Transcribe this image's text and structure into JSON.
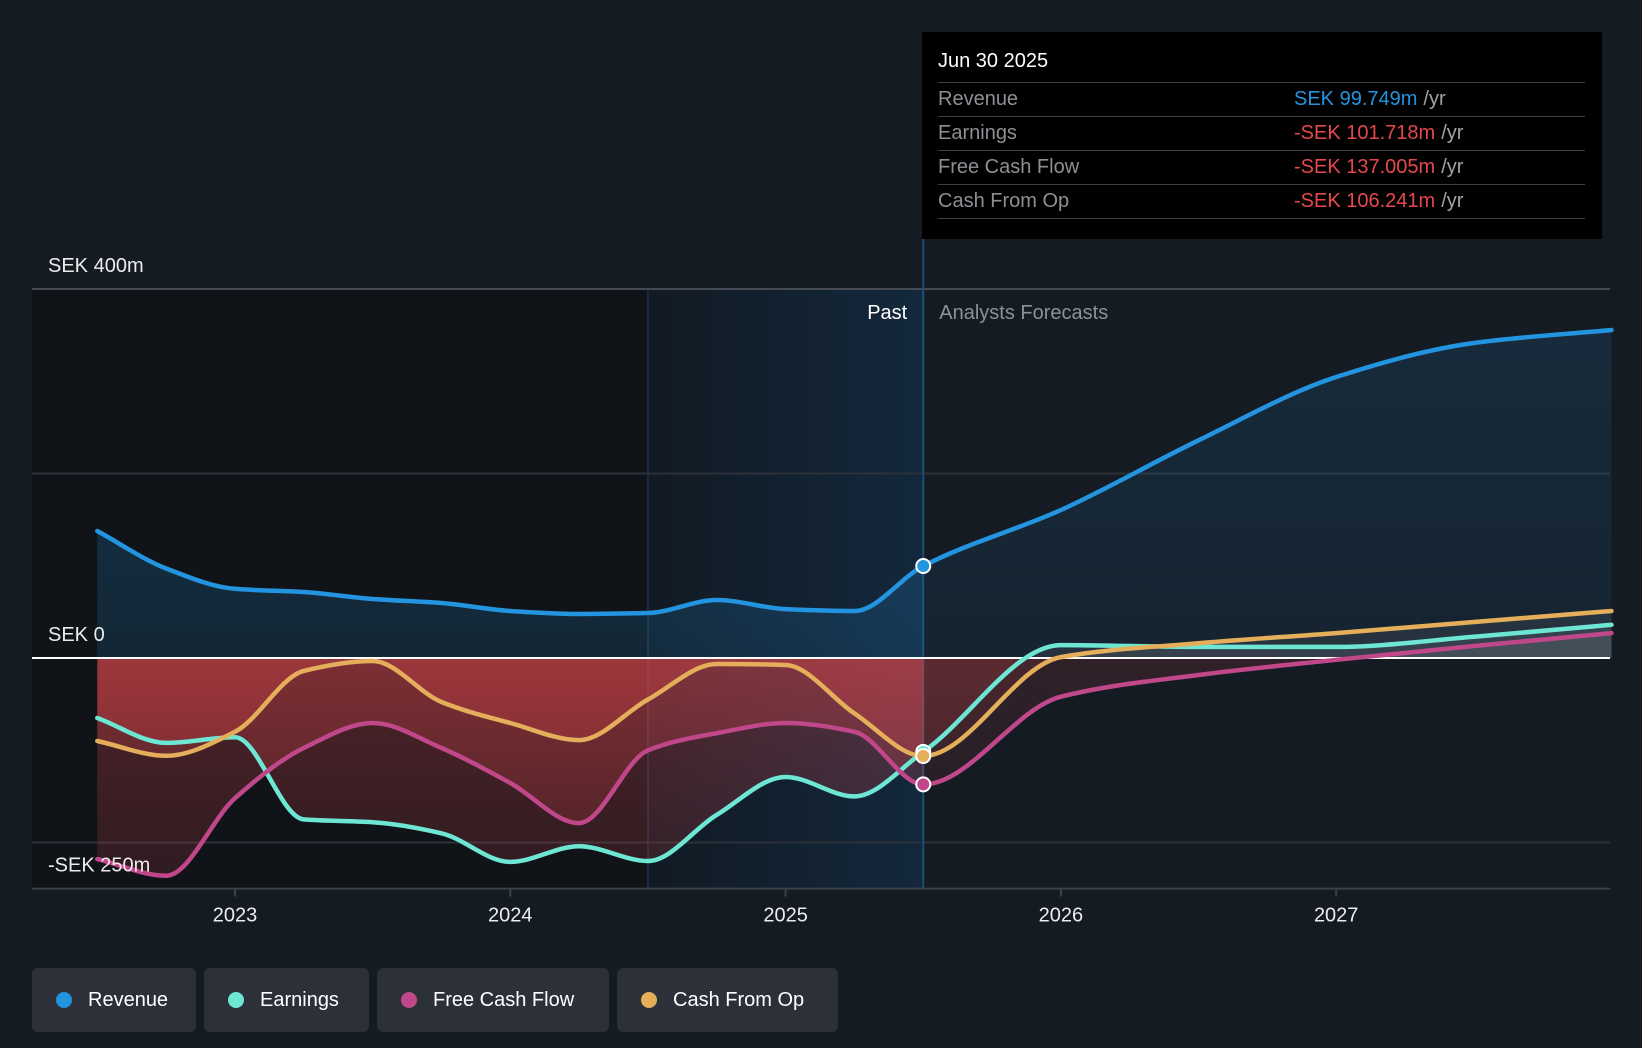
{
  "chart_data": {
    "type": "line",
    "title": "",
    "xlabel": "",
    "ylabel": "",
    "units": "SEK m",
    "xlim": [
      2022.26,
      2028.0
    ],
    "ylim": [
      -250,
      400
    ],
    "grid": true,
    "gridlines": [
      400,
      200,
      0,
      -200
    ],
    "x_ticks": [
      {
        "label": "2023",
        "value": 2023
      },
      {
        "label": "2024",
        "value": 2024
      },
      {
        "label": "2025",
        "value": 2025
      },
      {
        "label": "2026",
        "value": 2026
      },
      {
        "label": "2027",
        "value": 2027
      }
    ],
    "y_ticks": [
      {
        "label": "SEK 400m",
        "value": 400
      },
      {
        "label": "SEK 0",
        "value": 0
      },
      {
        "label": "-SEK 250m",
        "value": -250
      }
    ],
    "highlight_band": [
      2024.5,
      2025.5
    ],
    "now": 2025.5,
    "region_labels": {
      "past": "Past",
      "forecast": "Analysts Forecasts"
    },
    "legend_position": "bottom-left",
    "series": [
      {
        "name": "Revenue",
        "key": "revenue",
        "color": "#2394df",
        "points": [
          [
            2022.5,
            137.7
          ],
          [
            2022.75,
            97.0
          ],
          [
            2023.0,
            75.0
          ],
          [
            2023.25,
            71.5
          ],
          [
            2023.5,
            64.0
          ],
          [
            2023.75,
            59.6
          ],
          [
            2024.0,
            51.0
          ],
          [
            2024.25,
            47.7
          ],
          [
            2024.5,
            48.8
          ],
          [
            2024.75,
            62.9
          ],
          [
            2025.0,
            53.0
          ],
          [
            2025.25,
            51.0
          ],
          [
            2025.5,
            99.749
          ],
          [
            2026.0,
            160.4
          ],
          [
            2026.5,
            236.0
          ],
          [
            2027.0,
            304.6
          ],
          [
            2027.5,
            341.5
          ],
          [
            2028.0,
            355.6
          ]
        ]
      },
      {
        "name": "Earnings",
        "key": "earnings",
        "color": "#6ee6d4",
        "points": [
          [
            2022.5,
            -65.0
          ],
          [
            2022.75,
            -92.0
          ],
          [
            2023.0,
            -86.0
          ],
          [
            2023.25,
            -175.0
          ],
          [
            2023.5,
            -178.0
          ],
          [
            2023.75,
            -190.0
          ],
          [
            2024.0,
            -221.0
          ],
          [
            2024.25,
            -204.0
          ],
          [
            2024.5,
            -220.0
          ],
          [
            2024.75,
            -170.0
          ],
          [
            2025.0,
            -129.0
          ],
          [
            2025.25,
            -150.0
          ],
          [
            2025.5,
            -101.718
          ],
          [
            2026.0,
            14.0
          ],
          [
            2026.5,
            12.0
          ],
          [
            2027.0,
            12.0
          ],
          [
            2027.5,
            23.0
          ],
          [
            2028.0,
            36.0
          ]
        ]
      },
      {
        "name": "Free Cash Flow",
        "key": "fcf",
        "color": "#c0478a",
        "points": [
          [
            2022.5,
            -218.0
          ],
          [
            2022.75,
            -236.0
          ],
          [
            2023.0,
            -152.0
          ],
          [
            2023.25,
            -97.6
          ],
          [
            2023.5,
            -70.5
          ],
          [
            2023.75,
            -97.6
          ],
          [
            2024.0,
            -135.5
          ],
          [
            2024.25,
            -179.0
          ],
          [
            2024.5,
            -100.0
          ],
          [
            2024.75,
            -81.5
          ],
          [
            2025.0,
            -70.5
          ],
          [
            2025.25,
            -80.0
          ],
          [
            2025.5,
            -137.005
          ],
          [
            2026.0,
            -42.0
          ],
          [
            2026.5,
            -18.4
          ],
          [
            2027.0,
            -2.0
          ],
          [
            2027.5,
            13.0
          ],
          [
            2028.0,
            27.0
          ]
        ]
      },
      {
        "name": "Cash From Op",
        "key": "cfo",
        "color": "#e5ae5b",
        "points": [
          [
            2022.5,
            -90.0
          ],
          [
            2022.75,
            -106.0
          ],
          [
            2023.0,
            -80.0
          ],
          [
            2023.25,
            -14.0
          ],
          [
            2023.5,
            -3.3
          ],
          [
            2023.75,
            -47.7
          ],
          [
            2024.0,
            -70.5
          ],
          [
            2024.25,
            -89.0
          ],
          [
            2024.5,
            -45.0
          ],
          [
            2024.75,
            -6.5
          ],
          [
            2025.0,
            -7.6
          ],
          [
            2025.25,
            -60.0
          ],
          [
            2025.5,
            -106.241
          ],
          [
            2026.0,
            1.0
          ],
          [
            2026.5,
            16.0
          ],
          [
            2027.0,
            27.0
          ],
          [
            2027.5,
            39.0
          ],
          [
            2028.0,
            51.0
          ]
        ]
      }
    ]
  },
  "tooltip": {
    "date": "Jun 30 2025",
    "rows": [
      {
        "label": "Revenue",
        "value": "SEK 99.749m",
        "unit": "/yr",
        "color": "#2394df"
      },
      {
        "label": "Earnings",
        "value": "-SEK 101.718m",
        "unit": "/yr",
        "color": "#e5484d"
      },
      {
        "label": "Free Cash Flow",
        "value": "-SEK 137.005m",
        "unit": "/yr",
        "color": "#e5484d"
      },
      {
        "label": "Cash From Op",
        "value": "-SEK 106.241m",
        "unit": "/yr",
        "color": "#e5484d"
      }
    ]
  },
  "legend": [
    {
      "label": "Revenue",
      "color": "#2394df"
    },
    {
      "label": "Earnings",
      "color": "#6ee6d4"
    },
    {
      "label": "Free Cash Flow",
      "color": "#c0478a"
    },
    {
      "label": "Cash From Op",
      "color": "#e5ae5b"
    }
  ],
  "colors": {
    "background": "#151b23",
    "negative": "#e5484d",
    "zero_line": "#ffffff"
  }
}
